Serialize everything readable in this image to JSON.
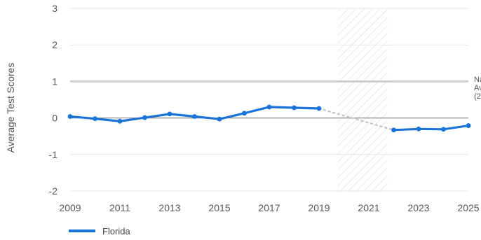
{
  "chart_data": {
    "type": "line",
    "ylabel": "Average Test Scores",
    "ylim": [
      -2,
      3
    ],
    "xlim": [
      2009,
      2025
    ],
    "yticks": [
      "-2",
      "-1",
      "0",
      "1",
      "2",
      "3"
    ],
    "xticks": [
      "2009",
      "2011",
      "2013",
      "2015",
      "2017",
      "2019",
      "2021",
      "2023",
      "2025"
    ],
    "grid": true,
    "legend_position": "bottom-left",
    "reference_line": {
      "value": 1,
      "label_lines": [
        "Na",
        "Av",
        "(2"
      ]
    },
    "shaded_period": {
      "from": 2019.75,
      "to": 2021.75,
      "pattern": "hatched"
    },
    "series": [
      {
        "name": "Florida",
        "color": "#1a73d9",
        "x": [
          2009,
          2010,
          2011,
          2012,
          2013,
          2014,
          2015,
          2016,
          2017,
          2018,
          2019,
          2022,
          2023,
          2024,
          2025
        ],
        "y": [
          0.04,
          -0.02,
          -0.09,
          0.01,
          0.11,
          0.04,
          -0.03,
          0.13,
          0.3,
          0.28,
          0.26,
          -0.33,
          -0.3,
          -0.31,
          -0.21
        ]
      }
    ],
    "gap_connector": {
      "from_x": 2019,
      "to_x": 2022,
      "style": "dotted"
    }
  }
}
